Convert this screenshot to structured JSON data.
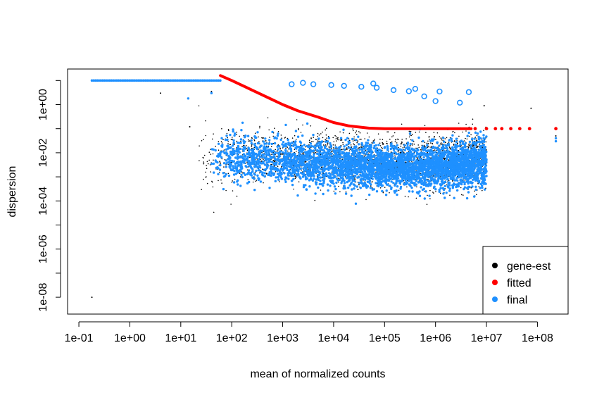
{
  "chart_data": {
    "type": "scatter",
    "title": "",
    "xlabel": "mean of normalized counts",
    "ylabel": "dispersion",
    "x_scale": "log10",
    "y_scale": "log10",
    "xlim": [
      0.06,
      400000000
    ],
    "ylim": [
      2e-09,
      30
    ],
    "x_ticks": [
      {
        "value": 0.1,
        "label": "1e-01"
      },
      {
        "value": 1,
        "label": "1e+00"
      },
      {
        "value": 10,
        "label": "1e+01"
      },
      {
        "value": 100,
        "label": "1e+02"
      },
      {
        "value": 1000,
        "label": "1e+03"
      },
      {
        "value": 10000,
        "label": "1e+04"
      },
      {
        "value": 100000,
        "label": "1e+05"
      },
      {
        "value": 1000000,
        "label": "1e+06"
      },
      {
        "value": 10000000,
        "label": "1e+07"
      },
      {
        "value": 100000000,
        "label": "1e+08"
      }
    ],
    "y_ticks": [
      {
        "value": 1,
        "label": "1e+00"
      },
      {
        "value": 0.01,
        "label": "1e-02"
      },
      {
        "value": 0.0001,
        "label": "1e-04"
      },
      {
        "value": 1e-06,
        "label": "1e-06"
      },
      {
        "value": 1e-08,
        "label": "1e-08"
      }
    ],
    "y_minor_ticks": [
      10,
      0.1,
      0.001,
      1e-05,
      1e-07
    ],
    "grid": false,
    "legend": {
      "placement": "bottom-right",
      "entries": [
        {
          "label": "gene-est",
          "color": "#000000"
        },
        {
          "label": "fitted",
          "color": "#ff0000"
        },
        {
          "label": "final",
          "color": "#1e90ff"
        }
      ]
    },
    "series": [
      {
        "name": "gene-est",
        "color": "#000000",
        "marker": "dot",
        "cloud": [
          [
            15,
            4,
            0.9
          ],
          [
            30,
            5,
            0.7
          ],
          [
            100,
            5.5,
            0.6
          ],
          [
            300,
            5,
            0.55
          ],
          [
            1000,
            4.5,
            0.5
          ],
          [
            3000,
            4,
            0.5
          ],
          [
            10000,
            3.3,
            0.55
          ],
          [
            30000,
            3,
            0.55
          ],
          [
            100000,
            2.6,
            0.5
          ],
          [
            300000,
            2.6,
            0.5
          ],
          [
            1000000,
            2.7,
            0.55
          ],
          [
            3000000,
            3.2,
            0.55
          ],
          [
            10000000,
            4,
            0.6
          ]
        ],
        "points": [
          [
            0.18,
            1e-08
          ],
          [
            4,
            3
          ],
          [
            15,
            0.12
          ],
          [
            40,
            3.5
          ],
          [
            30000,
            0.0003
          ],
          [
            80000,
            0.0008
          ],
          [
            9000000,
            0.9
          ],
          [
            75000000,
            0.7
          ],
          [
            230000000,
            0.05
          ]
        ]
      },
      {
        "name": "final",
        "color": "#1e90ff",
        "marker": "dot",
        "cap": 10,
        "cloud": [
          [
            30,
            4,
            0.5
          ],
          [
            100,
            4,
            0.5
          ],
          [
            300,
            3.5,
            0.5
          ],
          [
            1000,
            3,
            0.45
          ],
          [
            3000,
            2.5,
            0.45
          ],
          [
            10000,
            2.1,
            0.45
          ],
          [
            30000,
            1.8,
            0.45
          ],
          [
            100000,
            1.7,
            0.4
          ],
          [
            300000,
            1.7,
            0.4
          ],
          [
            1000000,
            1.8,
            0.45
          ],
          [
            3000000,
            2.1,
            0.45
          ],
          [
            10000000,
            2.6,
            0.5
          ]
        ],
        "capped_x_range": [
          0.18,
          60
        ],
        "points": [
          [
            40,
            3
          ],
          [
            14,
            1.8
          ],
          [
            5000,
            0.3
          ],
          [
            230000000,
            0.03
          ],
          [
            230000000,
            0.04
          ]
        ],
        "outliers": [
          [
            2500,
            8
          ],
          [
            4000,
            7
          ],
          [
            9000,
            6.5
          ],
          [
            16000,
            6
          ],
          [
            35000,
            5.5
          ],
          [
            70000,
            5
          ],
          [
            150000,
            4
          ],
          [
            300000,
            3.6
          ],
          [
            600000,
            2.2
          ],
          [
            1000000,
            1.4
          ],
          [
            4500000,
            3.3
          ],
          [
            3000000,
            1.2
          ],
          [
            1200000,
            3.5
          ],
          [
            400000,
            4.5
          ],
          [
            60000,
            7.5
          ],
          [
            1500,
            7
          ]
        ]
      },
      {
        "name": "fitted",
        "color": "#ff0000",
        "marker": "line",
        "x": [
          60,
          100,
          200,
          500,
          1000,
          2000,
          5000,
          10000,
          20000,
          50000,
          100000,
          200000,
          500000,
          1000000,
          2000000,
          5000000
        ],
        "y": [
          16,
          10,
          5,
          2,
          1,
          0.55,
          0.3,
          0.18,
          0.13,
          0.105,
          0.1,
          0.1,
          0.1,
          0.1,
          0.1,
          0.1
        ],
        "tail_points_x": [
          6000000,
          10000000,
          15000000,
          20000000,
          30000000,
          45000000,
          70000000,
          230000000
        ],
        "tail_y": 0.1
      }
    ]
  }
}
